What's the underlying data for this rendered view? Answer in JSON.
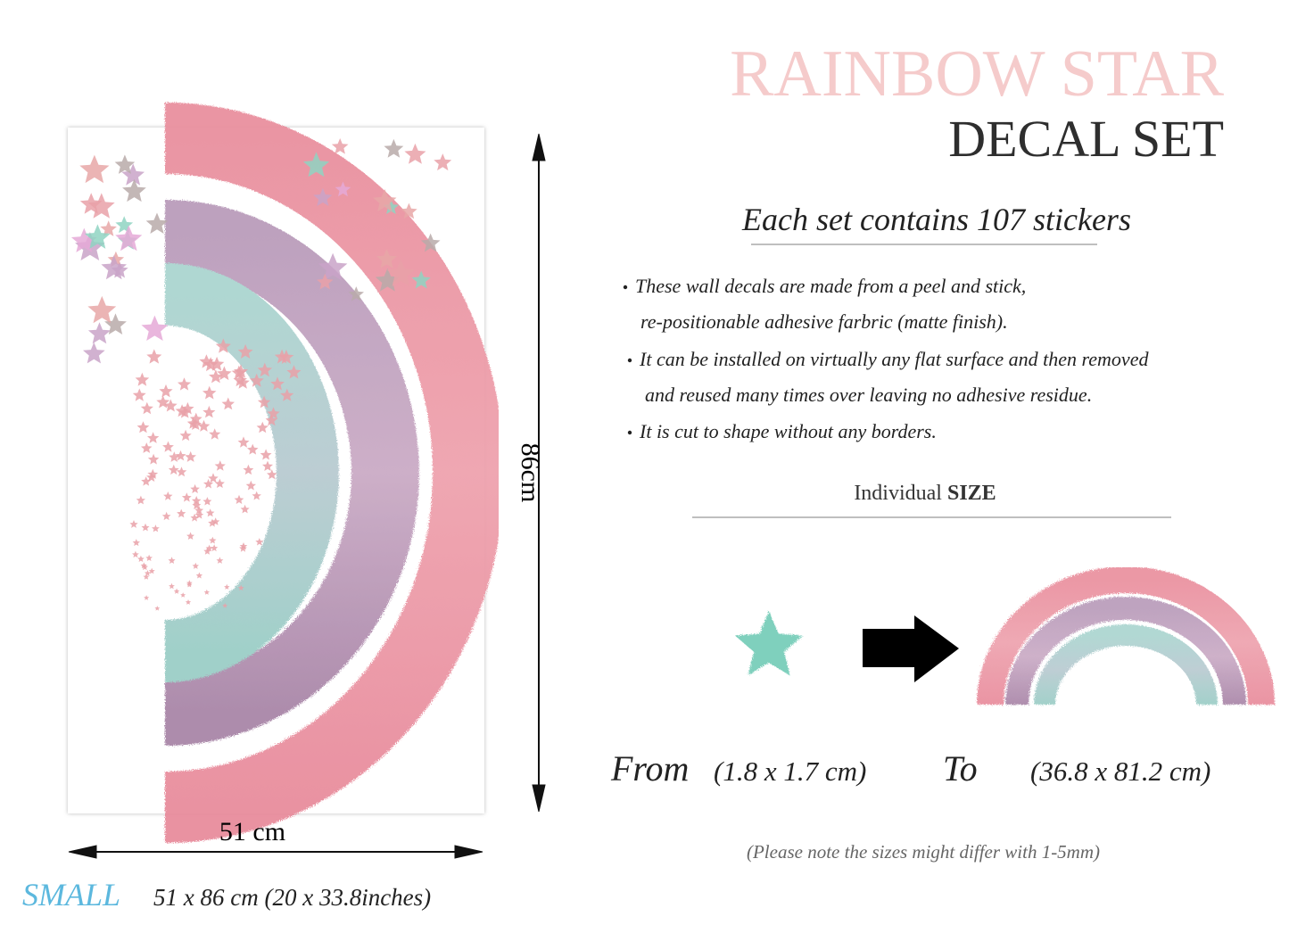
{
  "title": {
    "line1": "RAINBOW STAR",
    "line2": "DECAL SET"
  },
  "subtitle": "Each set contains 107 stickers",
  "bullets": [
    [
      "These wall decals are made from a peel and stick,",
      "re-positionable adhesive farbric (matte finish)."
    ],
    [
      "It can be installed on virtually any flat surface and then removed",
      "and reused many times over leaving no adhesive residue."
    ],
    [
      "It is cut to shape without any borders."
    ]
  ],
  "size_heading": {
    "text": "Individual",
    "emphasis": "SIZE"
  },
  "range": {
    "from_label": "From",
    "from_size": "(1.8 x 1.7 cm)",
    "to_label": "To",
    "to_size": "(36.8 x 81.2 cm)"
  },
  "note": "(Please note the sizes might differ with 1-5mm)",
  "dimensions": {
    "height": "86cm",
    "width": "51 cm"
  },
  "variant": {
    "name": "SMALL",
    "detail": "51 x 86 cm (20 x 33.8inches)"
  }
}
